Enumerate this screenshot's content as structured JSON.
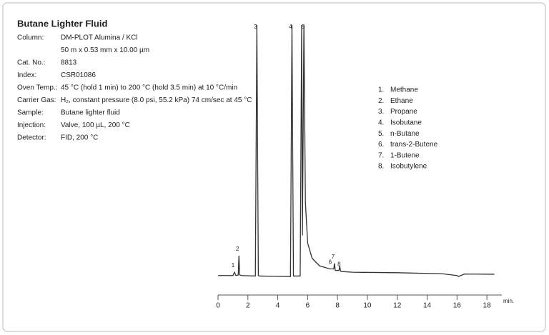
{
  "chart_data": {
    "type": "line",
    "title": "Butane Lighter Fluid",
    "info": [
      [
        "Column:",
        "DM-PLOT Alumina / KCl"
      ],
      [
        null,
        "50 m x 0.53 mm x 10.00 µm"
      ],
      [
        "Cat. No.:",
        "8813"
      ],
      [
        "Index:",
        "CSR01086"
      ],
      [
        "Oven Temp.:",
        "45 °C (hold 1 min) to 200 °C (hold 3.5 min) at 10 °C/min"
      ],
      [
        "Carrier Gas:",
        "H₂, constant pressure (8.0 psi, 55.2 kPa) 74 cm/sec at 45 °C"
      ],
      [
        "Sample:",
        "Butane lighter fluid"
      ],
      [
        "Injection:",
        "Valve, 100 µL, 200 °C"
      ],
      [
        "Detector:",
        "FID, 200 °C"
      ]
    ],
    "compounds": [
      {
        "number": "1.",
        "name": "Methane"
      },
      {
        "number": "2.",
        "name": "Ethane"
      },
      {
        "number": "3.",
        "name": "Propane"
      },
      {
        "number": "4.",
        "name": "Isobutane"
      },
      {
        "number": "5.",
        "name": "n-Butane"
      },
      {
        "number": "6.",
        "name": "trans-2-Butene"
      },
      {
        "number": "7.",
        "name": "1-Butene"
      },
      {
        "number": "8.",
        "name": "Isobutylene"
      }
    ],
    "peak_labels": [
      {
        "label": "1",
        "x": 1.1
      },
      {
        "label": "2",
        "x": 1.4
      },
      {
        "label": "3",
        "x": 2.6
      },
      {
        "label": "4",
        "x": 4.95
      },
      {
        "label": "5",
        "x": 5.8
      },
      {
        "label": "6",
        "x": 7.6
      },
      {
        "label": "7",
        "x": 7.8
      },
      {
        "label": "8",
        "x": 8.2
      }
    ],
    "x": [
      0,
      1.0,
      1.1,
      1.2,
      1.35,
      1.4,
      1.45,
      1.6,
      2.5,
      2.6,
      2.7,
      2.8,
      4.85,
      4.95,
      5.05,
      5.5,
      5.6,
      5.65,
      5.75,
      5.85,
      6.0,
      6.3,
      6.8,
      7.5,
      7.75,
      7.8,
      7.85,
      8.1,
      8.15,
      8.2,
      8.25,
      9,
      12,
      15,
      16,
      16.1,
      16.5,
      18.5
    ],
    "values": [
      1.2,
      1.2,
      2.5,
      1.2,
      1.4,
      9,
      1.4,
      1.2,
      1.0,
      100,
      1.2,
      1.0,
      0.8,
      100,
      1.0,
      1.0,
      100,
      17,
      100,
      30,
      14,
      8,
      5,
      3.8,
      3.8,
      6,
      3.2,
      3.2,
      5,
      3,
      2.8,
      2.5,
      2.3,
      1.9,
      1.2,
      0.8,
      1.8,
      1.7
    ],
    "color": "#333333",
    "xlim": [
      0,
      19
    ],
    "ylim": [
      0,
      100
    ],
    "xticks": [
      0,
      2,
      4,
      6,
      8,
      10,
      12,
      14,
      16,
      18
    ],
    "xlabel": "min."
  }
}
